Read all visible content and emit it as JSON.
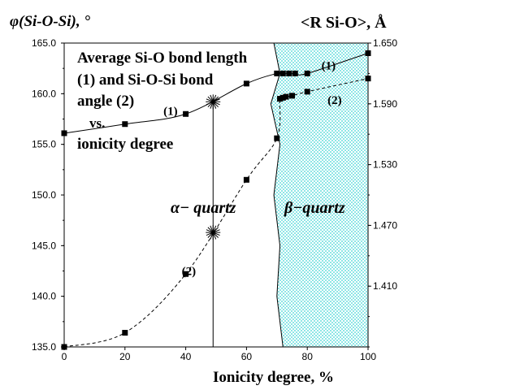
{
  "chart_data": {
    "type": "line",
    "x_axis": {
      "label": "Ionicity degree, %",
      "range": [
        0,
        100
      ],
      "ticks": [
        "0",
        "20",
        "40",
        "60",
        "80",
        "100"
      ]
    },
    "y_left": {
      "label": "φ(Si-O-Si), °",
      "range": [
        135,
        165
      ],
      "ticks": [
        "135.0",
        "140.0",
        "145.0",
        "150.0",
        "155.0",
        "160.0",
        "165.0"
      ]
    },
    "y_right": {
      "label": "<R Si-O>, Å",
      "range": [
        1.35,
        1.65
      ],
      "ticks": [
        "1.410",
        "1.470",
        "1.530",
        "1.590",
        "1.650"
      ]
    },
    "annotation": {
      "lines": [
        "Average Si-O bond length",
        "(1) and Si-O-Si bond",
        "angle (2)",
        "vs.",
        "ionicity degree"
      ]
    },
    "series": [
      {
        "label": "(1)",
        "axis": "right",
        "style": "solid",
        "points": [
          [
            0,
            1.561
          ],
          [
            20,
            1.57
          ],
          [
            40,
            1.58
          ],
          [
            60,
            1.61
          ],
          [
            70,
            1.62
          ],
          [
            72,
            1.62
          ],
          [
            74,
            1.62
          ],
          [
            76,
            1.62
          ],
          [
            80,
            1.62
          ],
          [
            100,
            1.64
          ]
        ]
      },
      {
        "label": "(2)",
        "axis": "left",
        "style": "dashed",
        "points": [
          [
            0,
            135.0
          ],
          [
            20,
            136.4
          ],
          [
            40,
            142.2
          ],
          [
            60,
            151.5
          ],
          [
            70,
            155.6
          ],
          [
            71,
            159.5
          ],
          [
            72,
            159.6
          ],
          [
            73,
            159.7
          ],
          [
            75,
            159.8
          ],
          [
            80,
            160.2
          ],
          [
            100,
            161.5
          ]
        ]
      }
    ],
    "series_labels": [
      {
        "text": "(1)",
        "x": 87,
        "y": 162.8
      },
      {
        "text": "(1)",
        "x": 35,
        "y": 158.3
      },
      {
        "text": "(2)",
        "x": 89,
        "y": 159.4
      },
      {
        "text": "(2)",
        "x": 41,
        "y": 142.5
      }
    ],
    "stars": [
      {
        "x": 49,
        "y": 159.2
      },
      {
        "x": 49,
        "y": 146.3
      }
    ],
    "region_labels": {
      "alpha": {
        "symbol": "α",
        "text": "− quartz"
      },
      "beta": {
        "symbol": "β",
        "text": "−quartz"
      }
    },
    "vertical_line_x": 49,
    "boundary": [
      [
        69,
        165
      ],
      [
        71,
        162
      ],
      [
        68,
        159
      ],
      [
        71,
        155
      ],
      [
        69,
        150
      ],
      [
        71,
        145
      ],
      [
        70,
        140
      ],
      [
        72,
        135
      ]
    ],
    "colors": {
      "beta_fill": "#8ee6e6",
      "line": "#000000"
    }
  }
}
